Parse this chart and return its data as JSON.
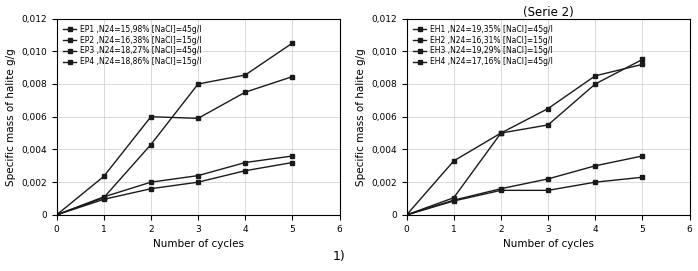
{
  "left": {
    "title": "",
    "xlabel": "Number of cycles",
    "ylabel": "Specific mass of halite g/g",
    "xlim": [
      0,
      6
    ],
    "ylim": [
      0,
      0.012
    ],
    "yticks": [
      0,
      0.002,
      0.004,
      0.006,
      0.008,
      0.01,
      0.012
    ],
    "xticks": [
      0,
      1,
      2,
      3,
      4,
      5,
      6
    ],
    "label_1": "1)",
    "series": [
      {
        "label": "EP1 ,N24=15,98% [NaCl]=45g/l",
        "x": [
          0,
          1,
          2,
          3,
          4,
          5
        ],
        "y": [
          0,
          0.00105,
          0.0043,
          0.008,
          0.00855,
          0.0105
        ]
      },
      {
        "label": "EP2 ,N24=16,38% [NaCl]=15g/l",
        "x": [
          0,
          1,
          2,
          3,
          4,
          5
        ],
        "y": [
          0,
          0.00235,
          0.006,
          0.0059,
          0.0075,
          0.00845
        ]
      },
      {
        "label": "EP3 ,N24=18,27% [NaCl]=45g/l",
        "x": [
          0,
          1,
          2,
          3,
          4,
          5
        ],
        "y": [
          0,
          0.0011,
          0.002,
          0.0024,
          0.0032,
          0.0036
        ]
      },
      {
        "label": "EP4 ,N24=18,86% [NaCl]=15g/l",
        "x": [
          0,
          1,
          2,
          3,
          4,
          5
        ],
        "y": [
          0,
          0.00095,
          0.0016,
          0.002,
          0.0027,
          0.0032
        ]
      }
    ]
  },
  "right": {
    "title": "(Serie 2)",
    "xlabel": "Number of cycles",
    "ylabel": "Specific mass of halite g/g",
    "xlim": [
      0,
      6
    ],
    "ylim": [
      0,
      0.012
    ],
    "yticks": [
      0,
      0.002,
      0.004,
      0.006,
      0.008,
      0.01,
      0.012
    ],
    "xticks": [
      0,
      1,
      2,
      3,
      4,
      5,
      6
    ],
    "series": [
      {
        "label": "EH1 ,N24=19,35% [NaCl]=45g/l",
        "x": [
          0,
          1,
          2,
          3,
          4,
          5
        ],
        "y": [
          0,
          0.00105,
          0.005,
          0.0055,
          0.008,
          0.0095
        ]
      },
      {
        "label": "EH2 ,N24=16,31% [NaCl]=15g/l",
        "x": [
          0,
          1,
          2,
          3,
          4,
          5
        ],
        "y": [
          0,
          0.0033,
          0.005,
          0.0065,
          0.0085,
          0.0092
        ]
      },
      {
        "label": "EH3 ,N24=19,29% [NaCl]=15g/l",
        "x": [
          0,
          1,
          2,
          3,
          4,
          5
        ],
        "y": [
          0,
          0.0009,
          0.0016,
          0.0022,
          0.003,
          0.0036
        ]
      },
      {
        "label": "EH4 ,N24=17,16% [NaCl]=45g/l",
        "x": [
          0,
          1,
          2,
          3,
          4,
          5
        ],
        "y": [
          0,
          0.00085,
          0.0015,
          0.0015,
          0.002,
          0.0023
        ]
      }
    ]
  },
  "line_color": "#1a1a1a",
  "marker": "s",
  "markersize": 3.5,
  "linewidth": 1.0,
  "legend_fontsize": 5.5,
  "tick_fontsize": 6.5,
  "label_fontsize": 7.5,
  "title_fontsize": 8.5
}
